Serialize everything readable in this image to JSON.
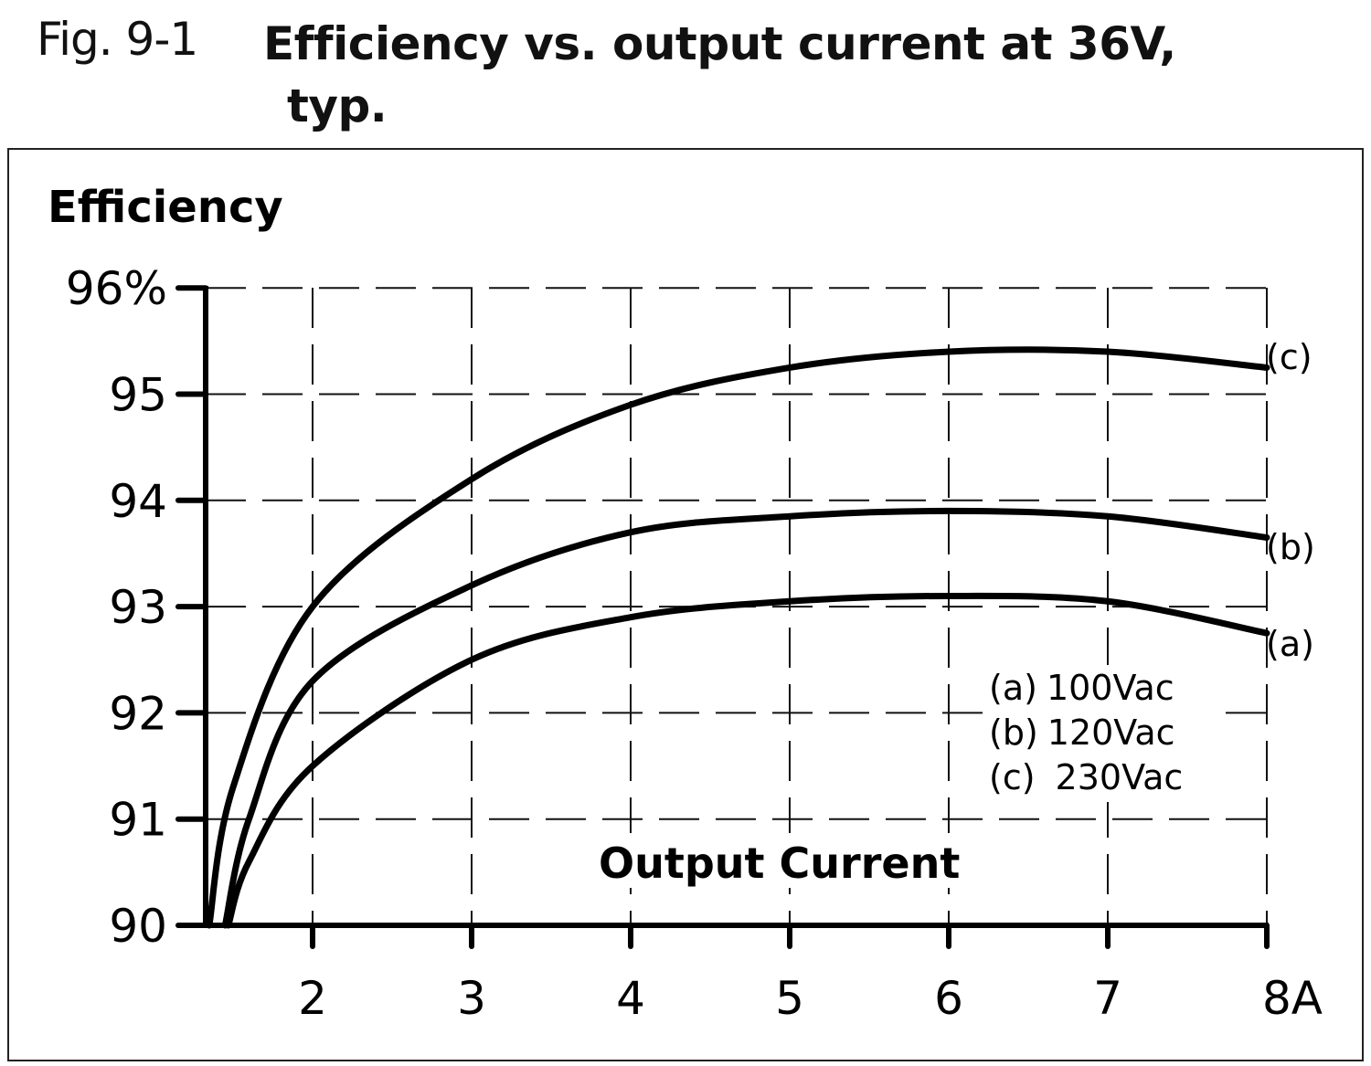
{
  "figure": {
    "number": "Fig. 9-1",
    "title_line1": "Efficiency vs. output current at 36V,",
    "title_line2": "typ."
  },
  "axes": {
    "ylabel": "Efficiency",
    "xlabel": "Output Current",
    "y_ticks": [
      "96%",
      "95",
      "94",
      "93",
      "92",
      "91",
      "90"
    ],
    "x_ticks": [
      "2",
      "3",
      "4",
      "5",
      "6",
      "7",
      "8A"
    ]
  },
  "legend": {
    "items": [
      {
        "key": "(a)",
        "label": "100Vac"
      },
      {
        "key": "(b)",
        "label": "120Vac"
      },
      {
        "key": "(c)",
        "label": "230Vac"
      }
    ]
  },
  "curve_labels": {
    "a": "(a)",
    "b": "(b)",
    "c": "(c)"
  },
  "chart_data": {
    "type": "line",
    "title": "Efficiency vs. output current at 36V, typ.",
    "xlabel": "Output Current (A)",
    "ylabel": "Efficiency (%)",
    "xlim": [
      1.33,
      8
    ],
    "ylim": [
      90,
      96
    ],
    "grid": true,
    "legend_position": "inside lower right",
    "x_tick_labels": [
      "2",
      "3",
      "4",
      "5",
      "6",
      "7",
      "8A"
    ],
    "y_tick_labels": [
      "90",
      "91",
      "92",
      "93",
      "94",
      "95",
      "96%"
    ],
    "series": [
      {
        "name": "(a) 100Vac",
        "x": [
          1.47,
          1.6,
          2,
          3,
          4,
          5,
          6,
          7,
          8
        ],
        "values": [
          90.0,
          90.6,
          91.5,
          92.5,
          92.9,
          93.05,
          93.1,
          93.05,
          92.75
        ]
      },
      {
        "name": "(b) 120Vac",
        "x": [
          1.45,
          1.6,
          2,
          3,
          4,
          5,
          6,
          7,
          8
        ],
        "values": [
          90.0,
          91.0,
          92.3,
          93.2,
          93.7,
          93.85,
          93.9,
          93.85,
          93.65
        ]
      },
      {
        "name": "(c) 230Vac",
        "x": [
          1.35,
          1.5,
          2,
          3,
          4,
          5,
          6,
          7,
          8
        ],
        "values": [
          90.0,
          91.3,
          93.0,
          94.2,
          94.9,
          95.25,
          95.4,
          95.4,
          95.25
        ]
      }
    ]
  }
}
